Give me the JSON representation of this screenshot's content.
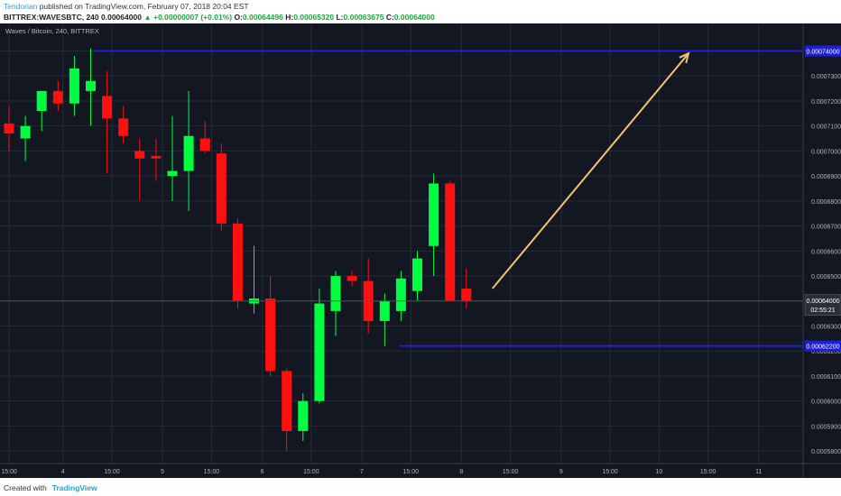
{
  "header": {
    "author": "Tendorian",
    "published_text": " published on TradingView.com, February 07, 2018 20:04 EST",
    "symbol": "BITTREX:WAVESBTC, 240",
    "price": "0.00064000",
    "change_arrow": "▲",
    "change": "+0.00000007 (+0.01%)",
    "o_label": "O:",
    "o_value": "0.00064496",
    "h_label": "H:",
    "h_value": "0.00065320",
    "l_label": "L:",
    "l_value": "0.00063675",
    "c_label": "C:",
    "c_value": "0.00064000"
  },
  "footer": {
    "created_with": "Created with",
    "brand": "TradingView"
  },
  "colors": {
    "background": "#131722",
    "grid": "#262a35",
    "up": "#00ff40",
    "down": "#ff1010",
    "level_line": "#1f1fd6",
    "arrow": "#f4c36a",
    "axis_text": "#b2b5be"
  },
  "chart_data": {
    "type": "candlestick",
    "title": "Waves / Bitcoin, 240, BITTREX",
    "grid": true,
    "ylim": [
      0.000575,
      0.000751
    ],
    "y_ticks": [
      "0.00058000",
      "0.00059000",
      "0.00060000",
      "0.00061000",
      "0.00062000",
      "0.00063000",
      "0.00064000",
      "0.00065000",
      "0.00066000",
      "0.00067000",
      "0.00068000",
      "0.00069000",
      "0.00070000",
      "0.00071000",
      "0.00072000",
      "0.00073000",
      "0.00074000"
    ],
    "x_ticks": [
      {
        "label": "15:00",
        "i": 0
      },
      {
        "label": "4",
        "i": 3.3
      },
      {
        "label": "15:00",
        "i": 6.3
      },
      {
        "label": "5",
        "i": 9.4
      },
      {
        "label": "15:00",
        "i": 12.4
      },
      {
        "label": "6",
        "i": 15.5
      },
      {
        "label": "15:00",
        "i": 18.5
      },
      {
        "label": "7",
        "i": 21.6
      },
      {
        "label": "15:00",
        "i": 24.6
      },
      {
        "label": "8",
        "i": 27.7
      },
      {
        "label": "15:00",
        "i": 30.7
      },
      {
        "label": "9",
        "i": 33.8
      },
      {
        "label": "15:00",
        "i": 36.8
      },
      {
        "label": "10",
        "i": 39.8
      },
      {
        "label": "15:00",
        "i": 42.8
      },
      {
        "label": "11",
        "i": 45.9
      }
    ],
    "candles": [
      {
        "o": 0.000711,
        "h": 0.000718,
        "l": 0.0007,
        "c": 0.000707
      },
      {
        "o": 0.000705,
        "h": 0.000714,
        "l": 0.000696,
        "c": 0.00071
      },
      {
        "o": 0.000716,
        "h": 0.000724,
        "l": 0.000708,
        "c": 0.000724
      },
      {
        "o": 0.000724,
        "h": 0.000728,
        "l": 0.000716,
        "c": 0.000719
      },
      {
        "o": 0.000719,
        "h": 0.000738,
        "l": 0.000714,
        "c": 0.000733
      },
      {
        "o": 0.000724,
        "h": 0.000741,
        "l": 0.00071,
        "c": 0.000728
      },
      {
        "o": 0.000722,
        "h": 0.000732,
        "l": 0.000691,
        "c": 0.000713
      },
      {
        "o": 0.000713,
        "h": 0.000718,
        "l": 0.000703,
        "c": 0.000706
      },
      {
        "o": 0.0007,
        "h": 0.000705,
        "l": 0.00068,
        "c": 0.000697
      },
      {
        "o": 0.000698,
        "h": 0.000705,
        "l": 0.000688,
        "c": 0.000697
      },
      {
        "o": 0.00069,
        "h": 0.000714,
        "l": 0.00068,
        "c": 0.000692
      },
      {
        "o": 0.000692,
        "h": 0.000724,
        "l": 0.000676,
        "c": 0.000706
      },
      {
        "o": 0.000705,
        "h": 0.000712,
        "l": 0.000699,
        "c": 0.0007
      },
      {
        "o": 0.000699,
        "h": 0.000703,
        "l": 0.000668,
        "c": 0.000671
      },
      {
        "o": 0.000671,
        "h": 0.000673,
        "l": 0.000637,
        "c": 0.00064
      },
      {
        "o": 0.000639,
        "h": 0.000662,
        "l": 0.000635,
        "c": 0.000641
      },
      {
        "o": 0.000641,
        "h": 0.00065,
        "l": 0.00061,
        "c": 0.000612
      },
      {
        "o": 0.000612,
        "h": 0.000613,
        "l": 0.00058,
        "c": 0.000588
      },
      {
        "o": 0.000588,
        "h": 0.000603,
        "l": 0.000584,
        "c": 0.0006
      },
      {
        "o": 0.0006,
        "h": 0.000645,
        "l": 0.000599,
        "c": 0.000639
      },
      {
        "o": 0.000636,
        "h": 0.000652,
        "l": 0.000626,
        "c": 0.00065
      },
      {
        "o": 0.00065,
        "h": 0.000652,
        "l": 0.000646,
        "c": 0.000648
      },
      {
        "o": 0.000648,
        "h": 0.000657,
        "l": 0.000627,
        "c": 0.000632
      },
      {
        "o": 0.000632,
        "h": 0.000643,
        "l": 0.000622,
        "c": 0.00064
      },
      {
        "o": 0.000636,
        "h": 0.000652,
        "l": 0.000632,
        "c": 0.000649
      },
      {
        "o": 0.000644,
        "h": 0.00066,
        "l": 0.00064,
        "c": 0.000657
      },
      {
        "o": 0.000662,
        "h": 0.000691,
        "l": 0.00065,
        "c": 0.000687
      },
      {
        "o": 0.000687,
        "h": 0.000688,
        "l": 0.00064,
        "c": 0.00064
      },
      {
        "o": 0.000645,
        "h": 0.000653,
        "l": 0.000637,
        "c": 0.00064
      }
    ],
    "levels": [
      {
        "value": 0.00074,
        "label": "0.00074000",
        "from_i": 5.2
      },
      {
        "value": 0.000622,
        "label": "0.00062200",
        "from_i": 23.9
      }
    ],
    "last_price": {
      "value": 0.00064,
      "label": "0.00064000",
      "countdown": "02:55:21"
    },
    "arrow": {
      "from_i": 29.6,
      "from_v": 0.000645,
      "to_i": 41.6,
      "to_v": 0.000739
    }
  }
}
